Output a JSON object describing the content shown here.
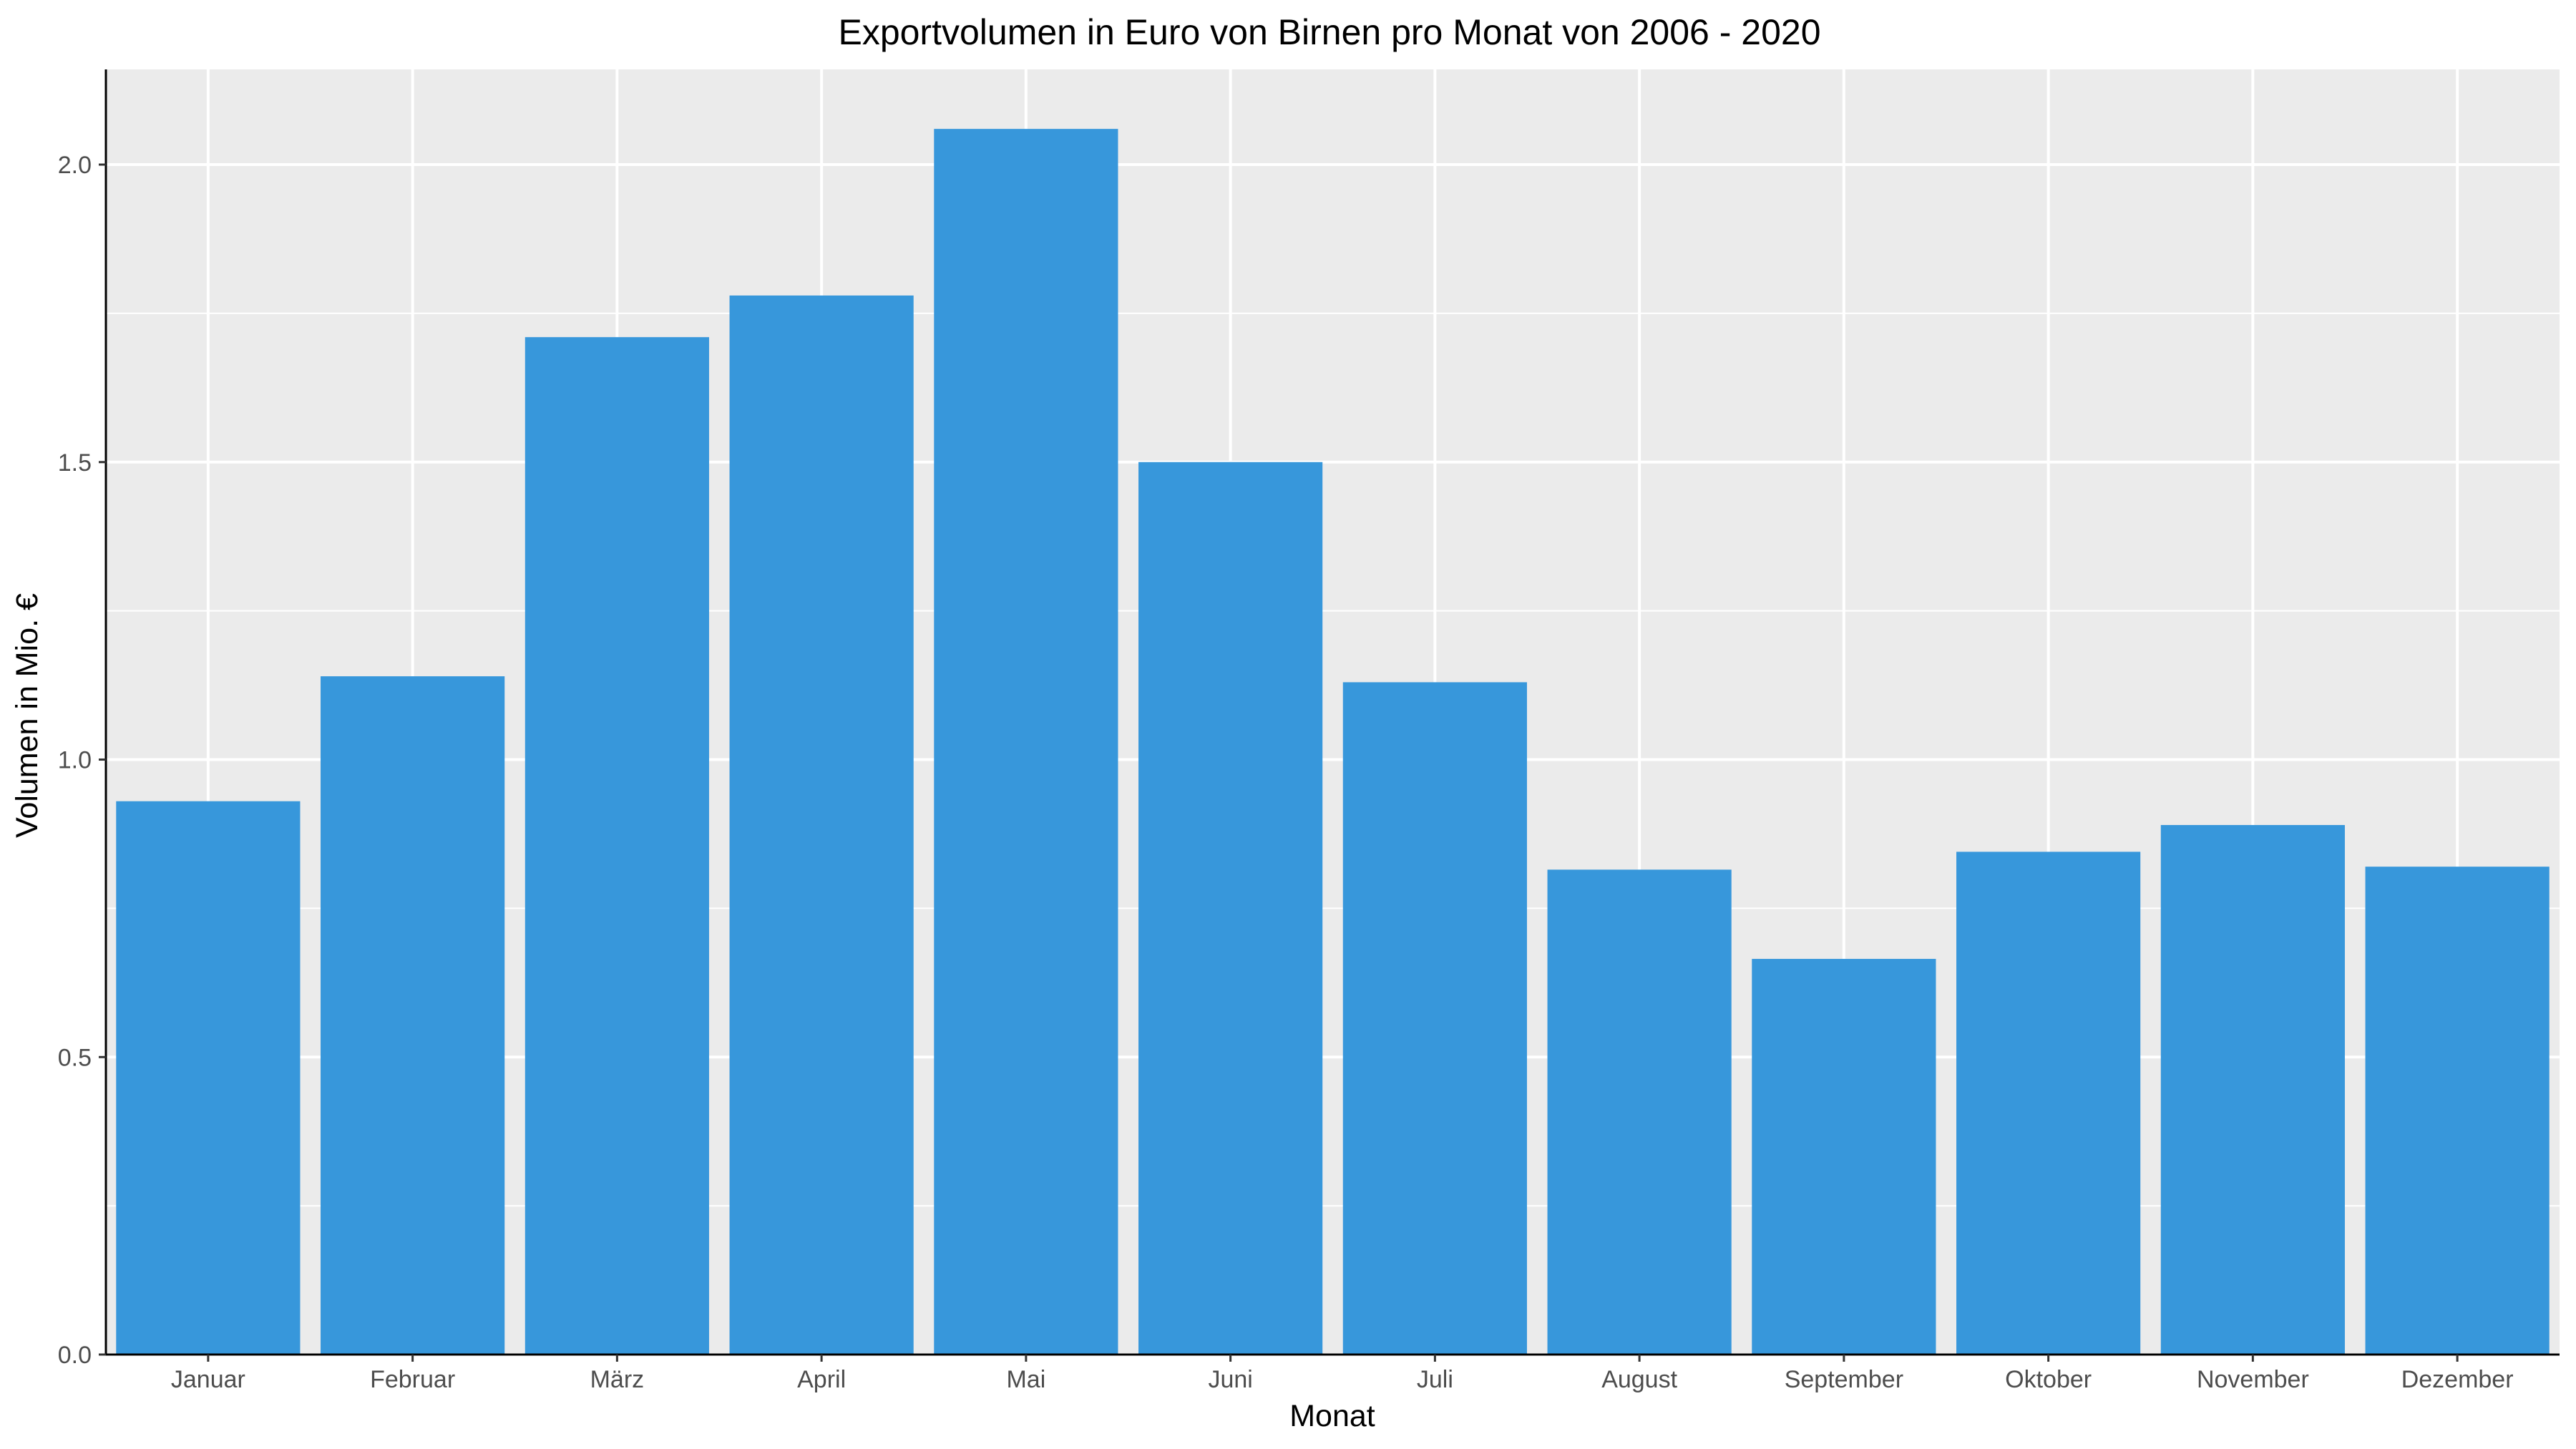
{
  "chart_data": {
    "type": "bar",
    "title": "Exportvolumen in Euro von Birnen pro Monat von 2006 - 2020",
    "xlabel": "Monat",
    "ylabel": "Volumen in Mio. €",
    "categories": [
      "Januar",
      "Februar",
      "März",
      "April",
      "Mai",
      "Juni",
      "Juli",
      "August",
      "September",
      "Oktober",
      "November",
      "Dezember"
    ],
    "values": [
      0.93,
      1.14,
      1.71,
      1.78,
      2.06,
      1.5,
      1.13,
      0.815,
      0.665,
      0.845,
      0.89,
      0.82
    ],
    "ylim": [
      0,
      2.16
    ],
    "yticks": [
      0.0,
      0.5,
      1.0,
      1.5,
      2.0
    ],
    "ytick_labels": [
      "0.0",
      "0.5",
      "1.0",
      "1.5",
      "2.0"
    ],
    "grid": true,
    "legend": "none",
    "colors": {
      "bar": "#3797DB",
      "panel_background": "#EBEBEB",
      "grid": "#FFFFFF",
      "axis_line": "#000000",
      "tick_text": "#4D4D4D"
    }
  }
}
